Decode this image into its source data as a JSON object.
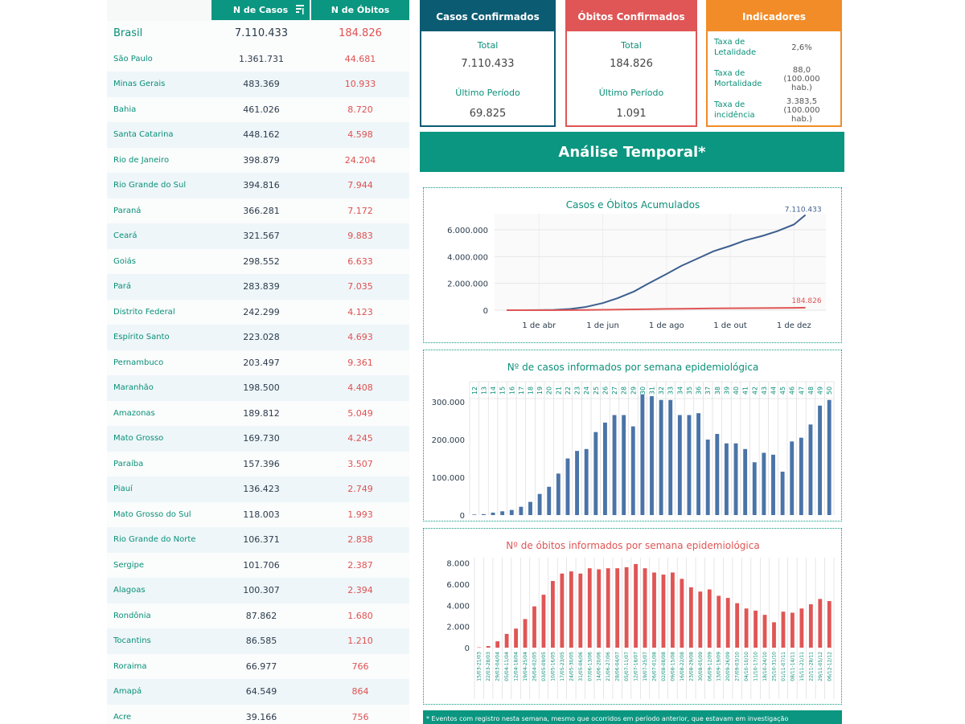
{
  "table": {
    "col_cases": "N de Casos",
    "col_deaths": "N de Óbitos",
    "sort_icon": "sort-icon",
    "brasil": {
      "name": "Brasil",
      "cases": "7.110.433",
      "deaths": "184.826"
    },
    "rows": [
      {
        "name": "São Paulo",
        "cases": "1.361.731",
        "deaths": "44.681"
      },
      {
        "name": "Minas Gerais",
        "cases": "483.369",
        "deaths": "10.933"
      },
      {
        "name": "Bahia",
        "cases": "461.026",
        "deaths": "8.720"
      },
      {
        "name": "Santa Catarina",
        "cases": "448.162",
        "deaths": "4.598"
      },
      {
        "name": "Rio de Janeiro",
        "cases": "398.879",
        "deaths": "24.204"
      },
      {
        "name": "Rio Grande do Sul",
        "cases": "394.816",
        "deaths": "7.944"
      },
      {
        "name": "Paraná",
        "cases": "366.281",
        "deaths": "7.172"
      },
      {
        "name": "Ceará",
        "cases": "321.567",
        "deaths": "9.883"
      },
      {
        "name": "Goiás",
        "cases": "298.552",
        "deaths": "6.633"
      },
      {
        "name": "Pará",
        "cases": "283.839",
        "deaths": "7.035"
      },
      {
        "name": "Distrito Federal",
        "cases": "242.299",
        "deaths": "4.123"
      },
      {
        "name": "Espírito Santo",
        "cases": "223.028",
        "deaths": "4.693"
      },
      {
        "name": "Pernambuco",
        "cases": "203.497",
        "deaths": "9.361"
      },
      {
        "name": "Maranhão",
        "cases": "198.500",
        "deaths": "4.408"
      },
      {
        "name": "Amazonas",
        "cases": "189.812",
        "deaths": "5.049"
      },
      {
        "name": "Mato Grosso",
        "cases": "169.730",
        "deaths": "4.245"
      },
      {
        "name": "Paraíba",
        "cases": "157.396",
        "deaths": "3.507"
      },
      {
        "name": "Piauí",
        "cases": "136.423",
        "deaths": "2.749"
      },
      {
        "name": "Mato Grosso do Sul",
        "cases": "118.003",
        "deaths": "1.993"
      },
      {
        "name": "Rio Grande do Norte",
        "cases": "106.371",
        "deaths": "2.838"
      },
      {
        "name": "Sergipe",
        "cases": "101.706",
        "deaths": "2.387"
      },
      {
        "name": "Alagoas",
        "cases": "100.307",
        "deaths": "2.394"
      },
      {
        "name": "Rondônia",
        "cases": "87.862",
        "deaths": "1.680"
      },
      {
        "name": "Tocantins",
        "cases": "86.585",
        "deaths": "1.210"
      },
      {
        "name": "Roraima",
        "cases": "66.977",
        "deaths": "766"
      },
      {
        "name": "Amapá",
        "cases": "64.549",
        "deaths": "864"
      },
      {
        "name": "Acre",
        "cases": "39.166",
        "deaths": "756"
      }
    ]
  },
  "cards": {
    "casos": {
      "title": "Casos Confirmados",
      "total_label": "Total",
      "total": "7.110.433",
      "last_label": "Último Período",
      "last": "69.825"
    },
    "obitos": {
      "title": "Óbitos Confirmados",
      "total_label": "Total",
      "total": "184.826",
      "last_label": "Último Período",
      "last": "1.091"
    },
    "indicadores": {
      "title": "Indicadores",
      "items": [
        {
          "label": "Taxa de Letalidade",
          "value": "2,6%",
          "unit": ""
        },
        {
          "label": "Taxa de Mortalidade",
          "value": "88,0",
          "unit": "(100.000 hab.)"
        },
        {
          "label": "Taxa de incidência",
          "value": "3.383,5",
          "unit": "(100.000 hab.)"
        }
      ]
    }
  },
  "banner": "Análise Temporal*",
  "footer": "* Eventos com registro nesta semana, mesmo que ocorridos em período anterior, que estavam em investigação",
  "colors": {
    "teal": "#0a9680",
    "navy": "#0b5b73",
    "red": "#e05555",
    "orange": "#f28c28",
    "blue_line": "#3c5f8f"
  },
  "chart_data": [
    {
      "type": "line",
      "title": "Casos e Óbitos Acumulados",
      "x_ticks": [
        "1 de abr",
        "1 de jun",
        "1 de ago",
        "1 de out",
        "1 de dez"
      ],
      "y_ticks": [
        "0",
        "2.000.000",
        "4.000.000",
        "6.000.000"
      ],
      "ylim": [
        0,
        7200000
      ],
      "x": [
        "2020-03-01",
        "2020-03-15",
        "2020-04-01",
        "2020-04-15",
        "2020-05-01",
        "2020-05-15",
        "2020-06-01",
        "2020-06-15",
        "2020-07-01",
        "2020-07-15",
        "2020-08-01",
        "2020-08-15",
        "2020-09-01",
        "2020-09-15",
        "2020-10-01",
        "2020-10-15",
        "2020-11-01",
        "2020-11-15",
        "2020-12-01",
        "2020-12-12"
      ],
      "series": [
        {
          "values": [
            0,
            1000,
            6000,
            25000,
            90000,
            230000,
            530000,
            890000,
            1400000,
            2000000,
            2700000,
            3300000,
            3900000,
            4400000,
            4800000,
            5200000,
            5550000,
            5900000,
            6400000,
            7110433
          ]
        },
        {
          "values": [
            0,
            20,
            200,
            1500,
            6000,
            15000,
            30000,
            45000,
            60000,
            75000,
            94000,
            107000,
            122000,
            134000,
            144000,
            152000,
            160000,
            166000,
            174000,
            184826
          ]
        }
      ],
      "end_labels": [
        "7.110.433",
        "184.826"
      ]
    },
    {
      "type": "bar",
      "title": "Nº de casos informados por semana epidemiológica",
      "categories": [
        "12",
        "13",
        "14",
        "15",
        "16",
        "17",
        "18",
        "19",
        "20",
        "21",
        "22",
        "23",
        "24",
        "25",
        "26",
        "27",
        "28",
        "29",
        "30",
        "31",
        "32",
        "33",
        "34",
        "35",
        "36",
        "37",
        "38",
        "39",
        "40",
        "41",
        "42",
        "43",
        "44",
        "45",
        "46",
        "47",
        "48",
        "49",
        "50"
      ],
      "values": [
        1500,
        2500,
        6500,
        10000,
        13500,
        22000,
        35000,
        56000,
        75000,
        110000,
        150000,
        170000,
        175000,
        220000,
        245000,
        265000,
        265000,
        235000,
        320000,
        315000,
        305000,
        305000,
        265000,
        265000,
        270000,
        200000,
        215000,
        190000,
        190000,
        175000,
        140000,
        165000,
        160000,
        115000,
        195000,
        205000,
        240000,
        290000,
        305000
      ],
      "y_ticks": [
        "0",
        "100.000",
        "200.000",
        "300.000"
      ],
      "ylim": [
        0,
        330000
      ]
    },
    {
      "type": "bar",
      "title": "Nº de óbitos informados por semana epidemiológica",
      "categories": [
        "15/03-21/03",
        "22/03-28/03",
        "29/03-04/04",
        "05/04-11/04",
        "12/04-18/04",
        "19/04-25/04",
        "26/04-02/05",
        "03/05-09/05",
        "10/05-16/05",
        "17/05-23/05",
        "24/05-30/05",
        "31/05-06/06",
        "07/06-13/06",
        "14/06-20/06",
        "21/06-27/06",
        "28/06-04/07",
        "05/07-11/07",
        "12/07-18/07",
        "19/07-25/07",
        "26/07-01/08",
        "02/08-08/08",
        "09/08-15/08",
        "16/08-22/08",
        "23/08-29/08",
        "30/08-05/09",
        "06/09-12/09",
        "13/09-19/09",
        "20/09-26/09",
        "27/09-03/10",
        "04/10-10/10",
        "11/10-17/10",
        "18/10-24/10",
        "25/10-31/10",
        "01/11-07/11",
        "08/11-14/11",
        "15/11-21/11",
        "22/11-28/11",
        "29/11-05/12",
        "06/12-12/12"
      ],
      "values": [
        30,
        150,
        600,
        1300,
        1800,
        2700,
        3900,
        5000,
        6300,
        7000,
        7200,
        7000,
        7500,
        7400,
        7500,
        7500,
        7600,
        7900,
        7500,
        7100,
        6900,
        7100,
        6500,
        5700,
        5300,
        5500,
        4900,
        4700,
        4200,
        3700,
        3500,
        3100,
        2400,
        3400,
        3300,
        3700,
        4100,
        4600,
        4400
      ],
      "y_ticks": [
        "0",
        "2.000",
        "4.000",
        "6.000",
        "8.000"
      ],
      "ylim": [
        0,
        8500
      ]
    }
  ]
}
